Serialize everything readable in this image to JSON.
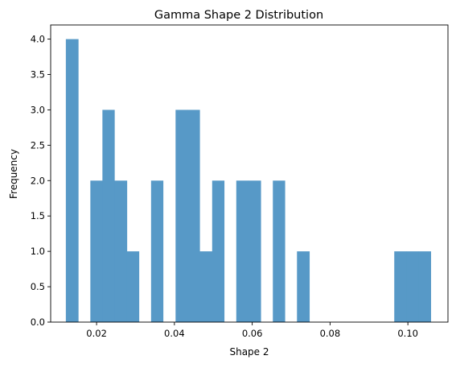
{
  "chart_data": {
    "type": "bar",
    "title": "Gamma Shape 2 Distribution",
    "xlabel": "Shape 2",
    "ylabel": "Frequency",
    "xlim": [
      0.0082,
      0.1103
    ],
    "ylim": [
      0,
      4.2
    ],
    "grid": false,
    "legend": "none",
    "bar_color": "#5799c7",
    "xticks": [
      {
        "value": 0.02,
        "label": "0.02"
      },
      {
        "value": 0.04,
        "label": "0.04"
      },
      {
        "value": 0.06,
        "label": "0.06"
      },
      {
        "value": 0.08,
        "label": "0.08"
      },
      {
        "value": 0.1,
        "label": "0.10"
      }
    ],
    "yticks": [
      {
        "value": 0.0,
        "label": "0.0"
      },
      {
        "value": 0.5,
        "label": "0.5"
      },
      {
        "value": 1.0,
        "label": "1.0"
      },
      {
        "value": 1.5,
        "label": "1.5"
      },
      {
        "value": 2.0,
        "label": "2.0"
      },
      {
        "value": 2.5,
        "label": "2.5"
      },
      {
        "value": 3.0,
        "label": "3.0"
      },
      {
        "value": 3.5,
        "label": "3.5"
      },
      {
        "value": 4.0,
        "label": "4.0"
      }
    ],
    "bins": [
      {
        "x0": 0.0121,
        "x1": 0.0153,
        "value": 4
      },
      {
        "x0": 0.0153,
        "x1": 0.0184,
        "value": 0
      },
      {
        "x0": 0.0184,
        "x1": 0.0215,
        "value": 2
      },
      {
        "x0": 0.0215,
        "x1": 0.0246,
        "value": 3
      },
      {
        "x0": 0.0246,
        "x1": 0.0278,
        "value": 2
      },
      {
        "x0": 0.0278,
        "x1": 0.0309,
        "value": 1
      },
      {
        "x0": 0.0309,
        "x1": 0.034,
        "value": 0
      },
      {
        "x0": 0.034,
        "x1": 0.0371,
        "value": 2
      },
      {
        "x0": 0.0371,
        "x1": 0.0403,
        "value": 0
      },
      {
        "x0": 0.0403,
        "x1": 0.0434,
        "value": 3
      },
      {
        "x0": 0.0434,
        "x1": 0.0465,
        "value": 3
      },
      {
        "x0": 0.0465,
        "x1": 0.0497,
        "value": 1
      },
      {
        "x0": 0.0497,
        "x1": 0.0528,
        "value": 2
      },
      {
        "x0": 0.0528,
        "x1": 0.0559,
        "value": 0
      },
      {
        "x0": 0.0559,
        "x1": 0.059,
        "value": 2
      },
      {
        "x0": 0.059,
        "x1": 0.0622,
        "value": 2
      },
      {
        "x0": 0.0622,
        "x1": 0.0653,
        "value": 0
      },
      {
        "x0": 0.0653,
        "x1": 0.0684,
        "value": 2
      },
      {
        "x0": 0.0684,
        "x1": 0.0715,
        "value": 0
      },
      {
        "x0": 0.0715,
        "x1": 0.0747,
        "value": 1
      },
      {
        "x0": 0.0747,
        "x1": 0.0778,
        "value": 0
      },
      {
        "x0": 0.0778,
        "x1": 0.0809,
        "value": 0
      },
      {
        "x0": 0.0809,
        "x1": 0.084,
        "value": 0
      },
      {
        "x0": 0.084,
        "x1": 0.0872,
        "value": 0
      },
      {
        "x0": 0.0872,
        "x1": 0.0903,
        "value": 0
      },
      {
        "x0": 0.0903,
        "x1": 0.0934,
        "value": 0
      },
      {
        "x0": 0.0934,
        "x1": 0.0965,
        "value": 0
      },
      {
        "x0": 0.0965,
        "x1": 0.0997,
        "value": 1
      },
      {
        "x0": 0.0997,
        "x1": 0.1028,
        "value": 1
      },
      {
        "x0": 0.1028,
        "x1": 0.1059,
        "value": 1
      }
    ]
  }
}
